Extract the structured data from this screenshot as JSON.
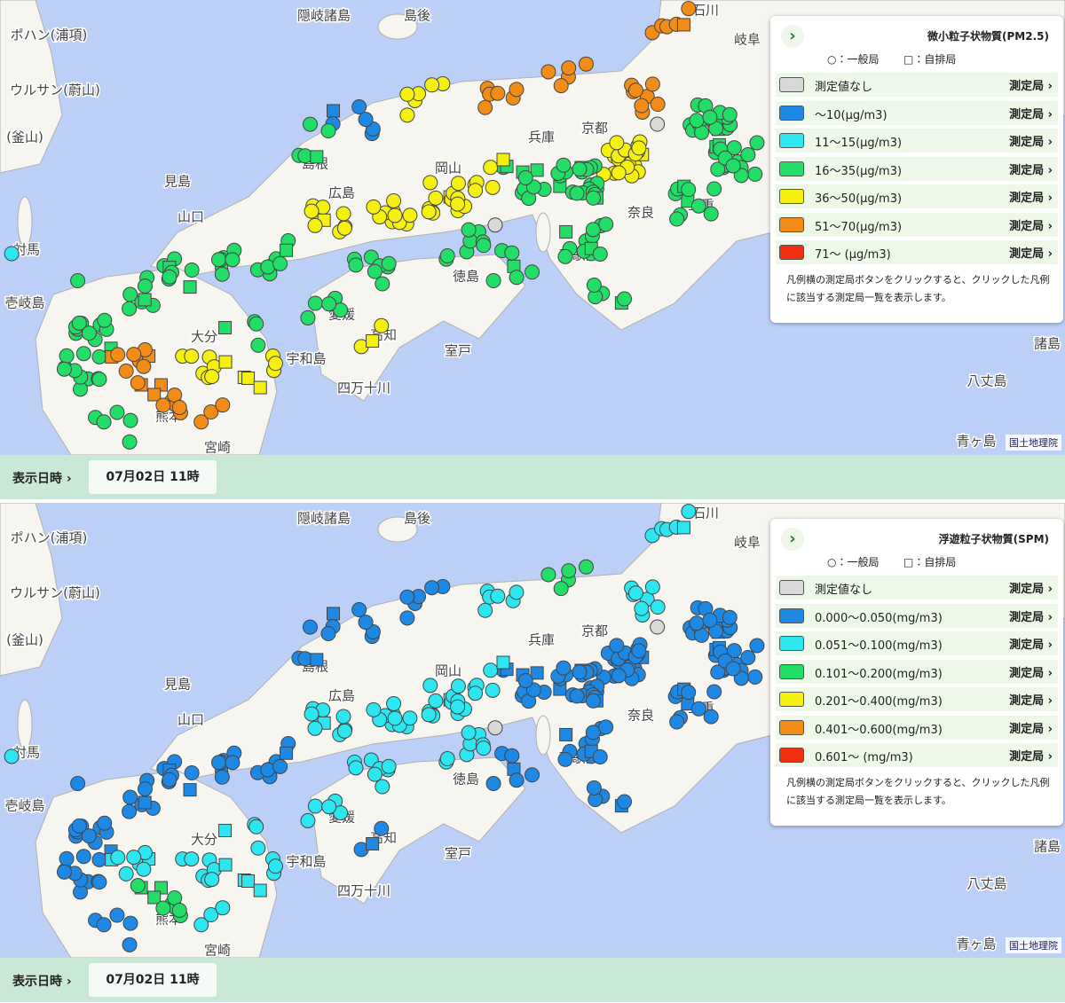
{
  "map_labels": [
    "隠岐諸島",
    "島後",
    "石川",
    "岐阜",
    "ポハン(浦項)",
    "ウルサン(蔚山)",
    "(釜山)",
    "対馬",
    "壱岐島",
    "見島",
    "島根",
    "兵庫",
    "京都",
    "岡山",
    "広島",
    "山口",
    "大分",
    "熊本",
    "宮崎",
    "奈良",
    "三重",
    "和歌山",
    "徳島",
    "愛媛",
    "高知",
    "室戸",
    "四万十川",
    "宇和島",
    "諸島",
    "八丈島",
    "青ヶ島"
  ],
  "panels": [
    {
      "legend": {
        "title": "微小粒子状物質(PM2.5)",
        "general": "○：一般局",
        "roadside": "□：自排局",
        "items": [
          {
            "label": "測定値なし",
            "color": "#d9d9d9",
            "button": "測定局"
          },
          {
            "label": "～10(μg/m3)",
            "color": "#1e88e5",
            "button": "測定局"
          },
          {
            "label": "11～15(μg/m3)",
            "color": "#2ee6f0",
            "button": "測定局"
          },
          {
            "label": "16～35(μg/m3)",
            "color": "#22dd66",
            "button": "測定局"
          },
          {
            "label": "36～50(μg/m3)",
            "color": "#f5f010",
            "button": "測定局"
          },
          {
            "label": "51～70(μg/m3)",
            "color": "#f28c16",
            "button": "測定局"
          },
          {
            "label": "71～ (μg/m3)",
            "color": "#f03010",
            "button": "測定局"
          }
        ],
        "note": "凡例横の測定局ボタンをクリックすると、クリックした凡例に該当する測定局一覧を表示します。"
      },
      "attribution": "国土地理院",
      "time_label": "表示日時",
      "time_value": "07月02日 11時"
    },
    {
      "legend": {
        "title": "浮遊粒子状物質(SPM)",
        "general": "○：一般局",
        "roadside": "□：自排局",
        "items": [
          {
            "label": "測定値なし",
            "color": "#d9d9d9",
            "button": "測定局"
          },
          {
            "label": "0.000～0.050(mg/m3)",
            "color": "#1e88e5",
            "button": "測定局"
          },
          {
            "label": "0.051～0.100(mg/m3)",
            "color": "#2ee6f0",
            "button": "測定局"
          },
          {
            "label": "0.101～0.200(mg/m3)",
            "color": "#22dd66",
            "button": "測定局"
          },
          {
            "label": "0.201～0.400(mg/m3)",
            "color": "#f5f010",
            "button": "測定局"
          },
          {
            "label": "0.401～0.600(mg/m3)",
            "color": "#f28c16",
            "button": "測定局"
          },
          {
            "label": "0.601～ (mg/m3)",
            "color": "#f03010",
            "button": "測定局"
          }
        ],
        "note": "凡例横の測定局ボタンをクリックすると、クリックした凡例に該当する測定局一覧を表示します。"
      },
      "attribution": "国土地理院",
      "time_label": "表示日時",
      "time_value": "07月02日 11時"
    }
  ]
}
